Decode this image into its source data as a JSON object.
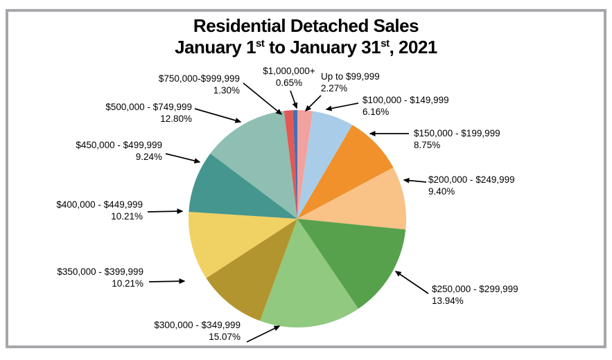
{
  "frame": {
    "border_color": "#a7a7ab",
    "background_color": "#ffffff"
  },
  "title": {
    "line1": "Residential Detached Sales",
    "line2_part1": "January 1",
    "line2_sup1": "st",
    "line2_part2": " to January 31",
    "line2_sup2": "st",
    "line2_part3": ", 2021"
  },
  "chart_data": {
    "type": "pie",
    "title": "Residential Detached Sales, January 1st to January 31st, 2021",
    "units": "percent of sales",
    "start_angle_deg": -90,
    "direction": "clockwise",
    "legend_position": "none (direct callout labels with arrows)",
    "total_percent": 100.0,
    "slices": [
      {
        "label": "Up to $99,999",
        "value": 2.27,
        "value_label": "2.27%",
        "color": "#f2a29e"
      },
      {
        "label": "$100,000 - $149,999",
        "value": 6.16,
        "value_label": "6.16%",
        "color": "#a9cde8"
      },
      {
        "label": "$150,000 - $199,999",
        "value": 8.75,
        "value_label": "8.75%",
        "color": "#f0912c"
      },
      {
        "label": "$200,000 - $249,999",
        "value": 9.4,
        "value_label": "9.40%",
        "color": "#f9c287"
      },
      {
        "label": "$250,000 - $299,999",
        "value": 13.94,
        "value_label": "13.94%",
        "color": "#57a14d"
      },
      {
        "label": "$300,000 - $349,999",
        "value": 15.07,
        "value_label": "15.07%",
        "color": "#90c97f"
      },
      {
        "label": "$350,000 - $399,999",
        "value": 10.21,
        "value_label": "10.21%",
        "color": "#b2952e"
      },
      {
        "label": "$400,000 - $449,999",
        "value": 10.21,
        "value_label": "10.21%",
        "color": "#f0d164"
      },
      {
        "label": "$450,000 - $499,999",
        "value": 9.24,
        "value_label": "9.24%",
        "color": "#45968e"
      },
      {
        "label": "$500,000 - $749,999",
        "value": 12.8,
        "value_label": "12.80%",
        "color": "#8fbfb2"
      },
      {
        "label": "$750,000-$999,999",
        "value": 1.3,
        "value_label": "1.30%",
        "color": "#e25955"
      },
      {
        "label": "$1,000,000+",
        "value": 0.65,
        "value_label": "0.65%",
        "color": "#4370b4"
      }
    ]
  }
}
